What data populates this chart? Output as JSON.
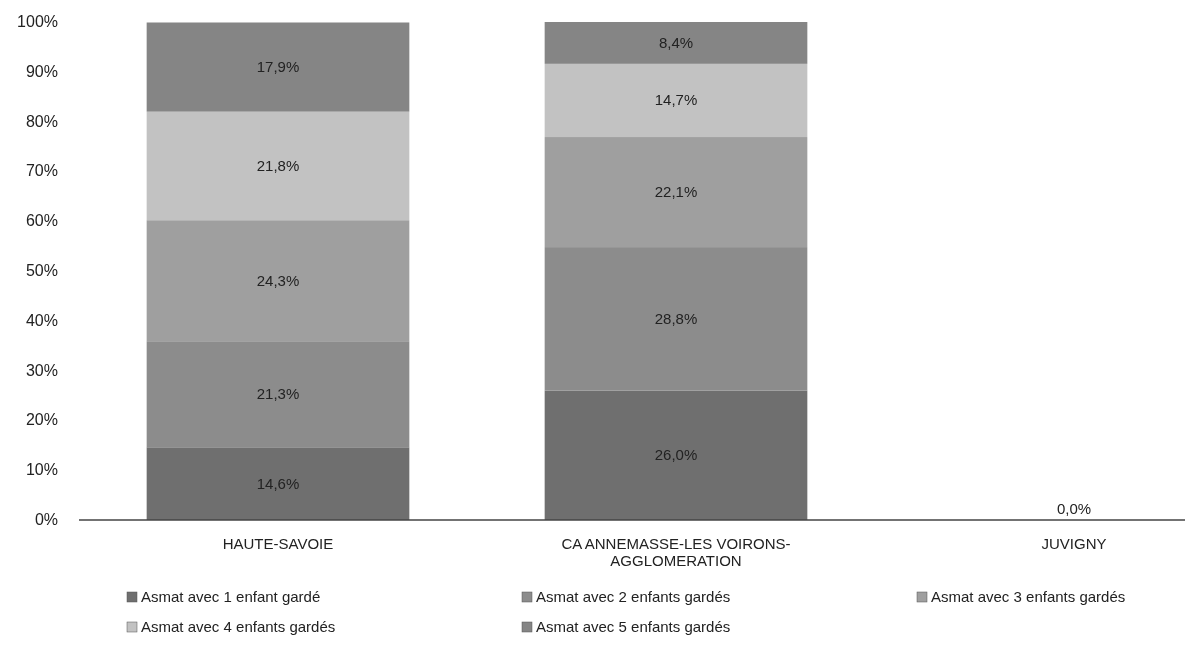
{
  "chart_data": {
    "type": "bar",
    "stacked": true,
    "categories": [
      "HAUTE-SAVOIE",
      "CA ANNEMASSE-LES VOIRONS-AGGLOMERATION",
      "JUVIGNY"
    ],
    "series": [
      {
        "name": "Asmat avec 1 enfant gardé",
        "color": "#6f6f6f",
        "values": [
          14.6,
          26.0,
          0
        ],
        "value_labels": [
          "14,6%",
          "26,0%",
          "0,0%"
        ]
      },
      {
        "name": "Asmat avec 2 enfants gardés",
        "color": "#8c8c8c",
        "values": [
          21.3,
          28.8,
          0
        ],
        "value_labels": [
          "21,3%",
          "28,8%",
          null
        ]
      },
      {
        "name": "Asmat avec 3 enfants gardés",
        "color": "#9f9f9f",
        "values": [
          24.3,
          22.1,
          0
        ],
        "value_labels": [
          "24,3%",
          "22,1%",
          null
        ]
      },
      {
        "name": "Asmat avec 4 enfants gardés",
        "color": "#c2c2c2",
        "values": [
          21.8,
          14.7,
          0
        ],
        "value_labels": [
          "21,8%",
          "14,7%",
          null
        ]
      },
      {
        "name": "Asmat avec 5 enfants gardés",
        "color": "#858585",
        "values": [
          17.9,
          8.4,
          0
        ],
        "value_labels": [
          "17,9%",
          "8,4%",
          null
        ]
      }
    ],
    "ylim": [
      0,
      100
    ],
    "yticks": [
      {
        "value": 0,
        "label": "0%"
      },
      {
        "value": 10,
        "label": "10%"
      },
      {
        "value": 20,
        "label": "20%"
      },
      {
        "value": 30,
        "label": "30%"
      },
      {
        "value": 40,
        "label": "40%"
      },
      {
        "value": 50,
        "label": "50%"
      },
      {
        "value": 60,
        "label": "60%"
      },
      {
        "value": 70,
        "label": "70%"
      },
      {
        "value": 80,
        "label": "80%"
      },
      {
        "value": 90,
        "label": "90%"
      },
      {
        "value": 100,
        "label": "100%"
      }
    ],
    "grid": false,
    "legend": "bottom"
  }
}
